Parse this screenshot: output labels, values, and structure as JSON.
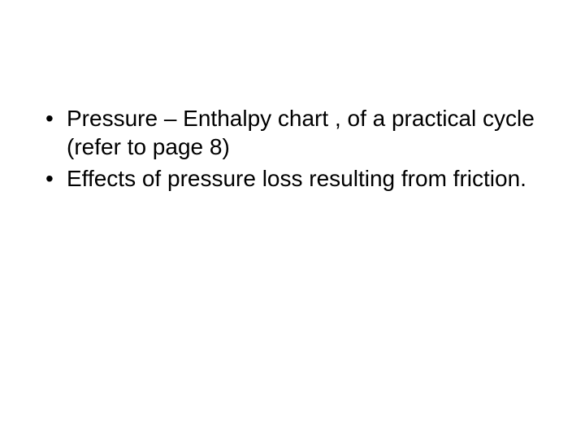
{
  "slide": {
    "bullets": [
      "Pressure – Enthalpy chart , of a practical cycle (refer to page 8)",
      "Effects of pressure loss resulting from friction."
    ],
    "text_color": "#000000",
    "background_color": "#ffffff",
    "font_size": 28,
    "font_family": "Arial, Helvetica, sans-serif"
  }
}
